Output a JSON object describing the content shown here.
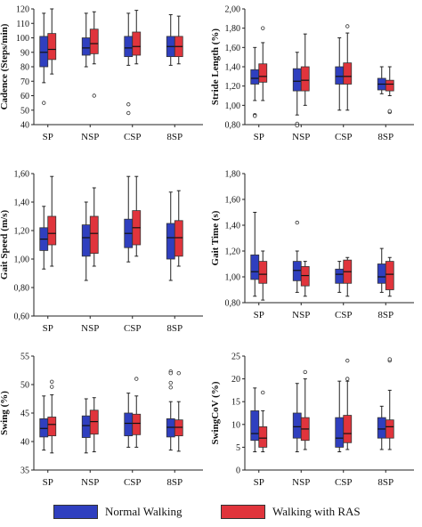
{
  "colors": {
    "normal": "#2f3fbf",
    "ras": "#e0343c",
    "outline": "#333333",
    "whisker": "#222222"
  },
  "legend": {
    "items": [
      {
        "label": "Normal Walking",
        "color": "#2f3fbf"
      },
      {
        "label": "Walking with RAS",
        "color": "#e0343c"
      }
    ]
  },
  "chart_data": [
    {
      "type": "boxplot",
      "ylabel": "Cadence (Steps/min)",
      "ylim": [
        40,
        120
      ],
      "yticks": [
        "40",
        "50",
        "60",
        "70",
        "80",
        "90",
        "100",
        "110",
        "120"
      ],
      "yticks_values": [
        40,
        50,
        60,
        70,
        80,
        90,
        100,
        110,
        120
      ],
      "categories": [
        "SP",
        "NSP",
        "CSP",
        "8SP"
      ],
      "series": [
        {
          "name": "Normal Walking",
          "boxes": [
            {
              "min": 69,
              "q1": 80,
              "median": 90,
              "q3": 101,
              "max": 117,
              "outliers": [
                55
              ]
            },
            {
              "min": 80,
              "q1": 88,
              "median": 93,
              "q3": 100,
              "max": 117,
              "outliers": []
            },
            {
              "min": 81,
              "q1": 87,
              "median": 93,
              "q3": 101,
              "max": 117,
              "outliers": [
                48,
                54
              ]
            },
            {
              "min": 81,
              "q1": 87,
              "median": 94,
              "q3": 101,
              "max": 116,
              "outliers": []
            }
          ]
        },
        {
          "name": "Walking with RAS",
          "boxes": [
            {
              "min": 75,
              "q1": 85,
              "median": 92,
              "q3": 103,
              "max": 120,
              "outliers": []
            },
            {
              "min": 82,
              "q1": 89,
              "median": 96,
              "q3": 106,
              "max": 118,
              "outliers": [
                60
              ]
            },
            {
              "min": 82,
              "q1": 88,
              "median": 94,
              "q3": 104,
              "max": 119,
              "outliers": []
            },
            {
              "min": 82,
              "q1": 87,
              "median": 94,
              "q3": 101,
              "max": 115,
              "outliers": []
            }
          ]
        }
      ]
    },
    {
      "type": "boxplot",
      "ylabel": "Stride Length (%)",
      "ylim": [
        0.8,
        2.0
      ],
      "yticks": [
        "0,80",
        "1,00",
        "1,20",
        "1,40",
        "1,60",
        "1,80",
        "2,00"
      ],
      "yticks_values": [
        0.8,
        1.0,
        1.2,
        1.4,
        1.6,
        1.8,
        2.0
      ],
      "categories": [
        "SP",
        "NSP",
        "CSP",
        "8SP"
      ],
      "series": [
        {
          "name": "Normal Walking",
          "boxes": [
            {
              "min": 1.05,
              "q1": 1.22,
              "median": 1.28,
              "q3": 1.37,
              "max": 1.6,
              "outliers": [
                0.9,
                0.89
              ]
            },
            {
              "min": 0.9,
              "q1": 1.15,
              "median": 1.25,
              "q3": 1.38,
              "max": 1.55,
              "outliers": [
                0.81,
                0.79
              ]
            },
            {
              "min": 0.95,
              "q1": 1.22,
              "median": 1.3,
              "q3": 1.4,
              "max": 1.7,
              "outliers": []
            },
            {
              "min": 1.12,
              "q1": 1.16,
              "median": 1.22,
              "q3": 1.28,
              "max": 1.4,
              "outliers": []
            }
          ]
        },
        {
          "name": "Walking with RAS",
          "boxes": [
            {
              "min": 1.05,
              "q1": 1.24,
              "median": 1.3,
              "q3": 1.43,
              "max": 1.65,
              "outliers": [
                1.8
              ]
            },
            {
              "min": 1.0,
              "q1": 1.15,
              "median": 1.26,
              "q3": 1.4,
              "max": 1.74,
              "outliers": []
            },
            {
              "min": 0.95,
              "q1": 1.22,
              "median": 1.3,
              "q3": 1.44,
              "max": 1.75,
              "outliers": [
                1.82
              ]
            },
            {
              "min": 1.1,
              "q1": 1.15,
              "median": 1.22,
              "q3": 1.26,
              "max": 1.4,
              "outliers": [
                0.93,
                0.94
              ]
            }
          ]
        }
      ]
    },
    {
      "type": "boxplot",
      "ylabel": "Gait Speed (m/s)",
      "ylim": [
        0.6,
        1.6
      ],
      "yticks": [
        "0,60",
        "0,80",
        "1,00",
        "1,20",
        "1,40",
        "1,60"
      ],
      "yticks_values": [
        0.6,
        0.8,
        1.0,
        1.2,
        1.4,
        1.6
      ],
      "categories": [
        "SP",
        "NSP",
        "CSP",
        "8SP"
      ],
      "series": [
        {
          "name": "Normal Walking",
          "boxes": [
            {
              "min": 0.93,
              "q1": 1.06,
              "median": 1.14,
              "q3": 1.22,
              "max": 1.37,
              "outliers": []
            },
            {
              "min": 0.85,
              "q1": 1.02,
              "median": 1.15,
              "q3": 1.24,
              "max": 1.4,
              "outliers": []
            },
            {
              "min": 0.98,
              "q1": 1.08,
              "median": 1.18,
              "q3": 1.28,
              "max": 1.58,
              "outliers": []
            },
            {
              "min": 0.85,
              "q1": 1.0,
              "median": 1.15,
              "q3": 1.25,
              "max": 1.47,
              "outliers": []
            }
          ]
        },
        {
          "name": "Walking with RAS",
          "boxes": [
            {
              "min": 0.95,
              "q1": 1.1,
              "median": 1.18,
              "q3": 1.3,
              "max": 1.58,
              "outliers": []
            },
            {
              "min": 0.95,
              "q1": 1.04,
              "median": 1.18,
              "q3": 1.3,
              "max": 1.5,
              "outliers": []
            },
            {
              "min": 1.02,
              "q1": 1.1,
              "median": 1.22,
              "q3": 1.34,
              "max": 1.58,
              "outliers": []
            },
            {
              "min": 0.95,
              "q1": 1.02,
              "median": 1.15,
              "q3": 1.27,
              "max": 1.48,
              "outliers": []
            }
          ]
        }
      ]
    },
    {
      "type": "boxplot",
      "ylabel": "Gait Time (s)",
      "ylim": [
        0.8,
        1.8
      ],
      "yticks": [
        "0,80",
        "1,00",
        "1,20",
        "1,40",
        "1,60",
        "1,80"
      ],
      "yticks_values": [
        0.8,
        1.0,
        1.2,
        1.4,
        1.6,
        1.8
      ],
      "categories": [
        "SP",
        "NSP",
        "CSP",
        "8SP"
      ],
      "series": [
        {
          "name": "Normal Walking",
          "boxes": [
            {
              "min": 0.85,
              "q1": 0.98,
              "median": 1.04,
              "q3": 1.17,
              "max": 1.5,
              "outliers": []
            },
            {
              "min": 0.88,
              "q1": 0.97,
              "median": 1.05,
              "q3": 1.12,
              "max": 1.2,
              "outliers": [
                1.42
              ]
            },
            {
              "min": 0.88,
              "q1": 0.95,
              "median": 1.02,
              "q3": 1.06,
              "max": 1.12,
              "outliers": []
            },
            {
              "min": 0.88,
              "q1": 0.95,
              "median": 1.0,
              "q3": 1.1,
              "max": 1.22,
              "outliers": []
            }
          ]
        },
        {
          "name": "Walking with RAS",
          "boxes": [
            {
              "min": 0.82,
              "q1": 0.95,
              "median": 1.02,
              "q3": 1.12,
              "max": 1.2,
              "outliers": []
            },
            {
              "min": 0.85,
              "q1": 0.93,
              "median": 1.01,
              "q3": 1.08,
              "max": 1.12,
              "outliers": []
            },
            {
              "min": 0.85,
              "q1": 0.95,
              "median": 1.04,
              "q3": 1.13,
              "max": 1.15,
              "outliers": []
            },
            {
              "min": 0.85,
              "q1": 0.9,
              "median": 1.02,
              "q3": 1.12,
              "max": 1.15,
              "outliers": []
            }
          ]
        }
      ]
    },
    {
      "type": "boxplot",
      "ylabel": "Swing (%)",
      "ylim": [
        35,
        55
      ],
      "yticks": [
        "35",
        "40",
        "45",
        "50",
        "55"
      ],
      "yticks_values": [
        35,
        40,
        45,
        50,
        55
      ],
      "categories": [
        "SP",
        "NSP",
        "CSP",
        "8SP"
      ],
      "series": [
        {
          "name": "Normal Walking",
          "boxes": [
            {
              "min": 38.5,
              "q1": 40.8,
              "median": 42.3,
              "q3": 44.0,
              "max": 48.0,
              "outliers": []
            },
            {
              "min": 38.0,
              "q1": 40.7,
              "median": 42.8,
              "q3": 44.5,
              "max": 47.5,
              "outliers": []
            },
            {
              "min": 39.0,
              "q1": 41.0,
              "median": 43.2,
              "q3": 45.0,
              "max": 48.5,
              "outliers": []
            },
            {
              "min": 38.5,
              "q1": 40.8,
              "median": 42.5,
              "q3": 44.0,
              "max": 47.0,
              "outliers": [
                52.3,
                52.0,
                49.5,
                50.3
              ]
            }
          ]
        },
        {
          "name": "Walking with RAS",
          "boxes": [
            {
              "min": 38.0,
              "q1": 41.0,
              "median": 43.0,
              "q3": 44.3,
              "max": 48.2,
              "outliers": [
                50.5,
                49.6
              ]
            },
            {
              "min": 38.2,
              "q1": 41.3,
              "median": 43.5,
              "q3": 45.5,
              "max": 47.7,
              "outliers": []
            },
            {
              "min": 39.0,
              "q1": 41.2,
              "median": 43.2,
              "q3": 44.8,
              "max": 48.0,
              "outliers": [
                51.0
              ]
            },
            {
              "min": 38.3,
              "q1": 41.0,
              "median": 42.5,
              "q3": 43.8,
              "max": 47.0,
              "outliers": [
                52.0
              ]
            }
          ]
        }
      ]
    },
    {
      "type": "boxplot",
      "ylabel": "SwingCoV (%)",
      "ylim": [
        0,
        25
      ],
      "yticks": [
        "0",
        "5",
        "10",
        "15",
        "20",
        "25"
      ],
      "yticks_values": [
        0,
        5,
        10,
        15,
        20,
        25
      ],
      "categories": [
        "SP",
        "NSP",
        "CSP",
        "8SP"
      ],
      "series": [
        {
          "name": "Normal Walking",
          "boxes": [
            {
              "min": 4.0,
              "q1": 6.5,
              "median": 8.0,
              "q3": 13.0,
              "max": 18.0,
              "outliers": []
            },
            {
              "min": 4.0,
              "q1": 7.0,
              "median": 9.5,
              "q3": 12.5,
              "max": 19.0,
              "outliers": []
            },
            {
              "min": 4.0,
              "q1": 5.0,
              "median": 7.0,
              "q3": 11.5,
              "max": 19.5,
              "outliers": []
            },
            {
              "min": 4.5,
              "q1": 7.0,
              "median": 9.0,
              "q3": 11.5,
              "max": 14.0,
              "outliers": []
            }
          ]
        },
        {
          "name": "Walking with RAS",
          "boxes": [
            {
              "min": 4.0,
              "q1": 5.0,
              "median": 7.0,
              "q3": 9.5,
              "max": 13.0,
              "outliers": [
                17.0
              ]
            },
            {
              "min": 4.5,
              "q1": 6.5,
              "median": 9.0,
              "q3": 11.5,
              "max": 20.0,
              "outliers": [
                21.5
              ]
            },
            {
              "min": 4.5,
              "q1": 6.0,
              "median": 8.0,
              "q3": 12.0,
              "max": 19.5,
              "outliers": [
                24.0,
                20.0
              ]
            },
            {
              "min": 4.5,
              "q1": 7.0,
              "median": 9.5,
              "q3": 11.0,
              "max": 17.5,
              "outliers": [
                24.0,
                24.3
              ]
            }
          ]
        }
      ]
    }
  ]
}
